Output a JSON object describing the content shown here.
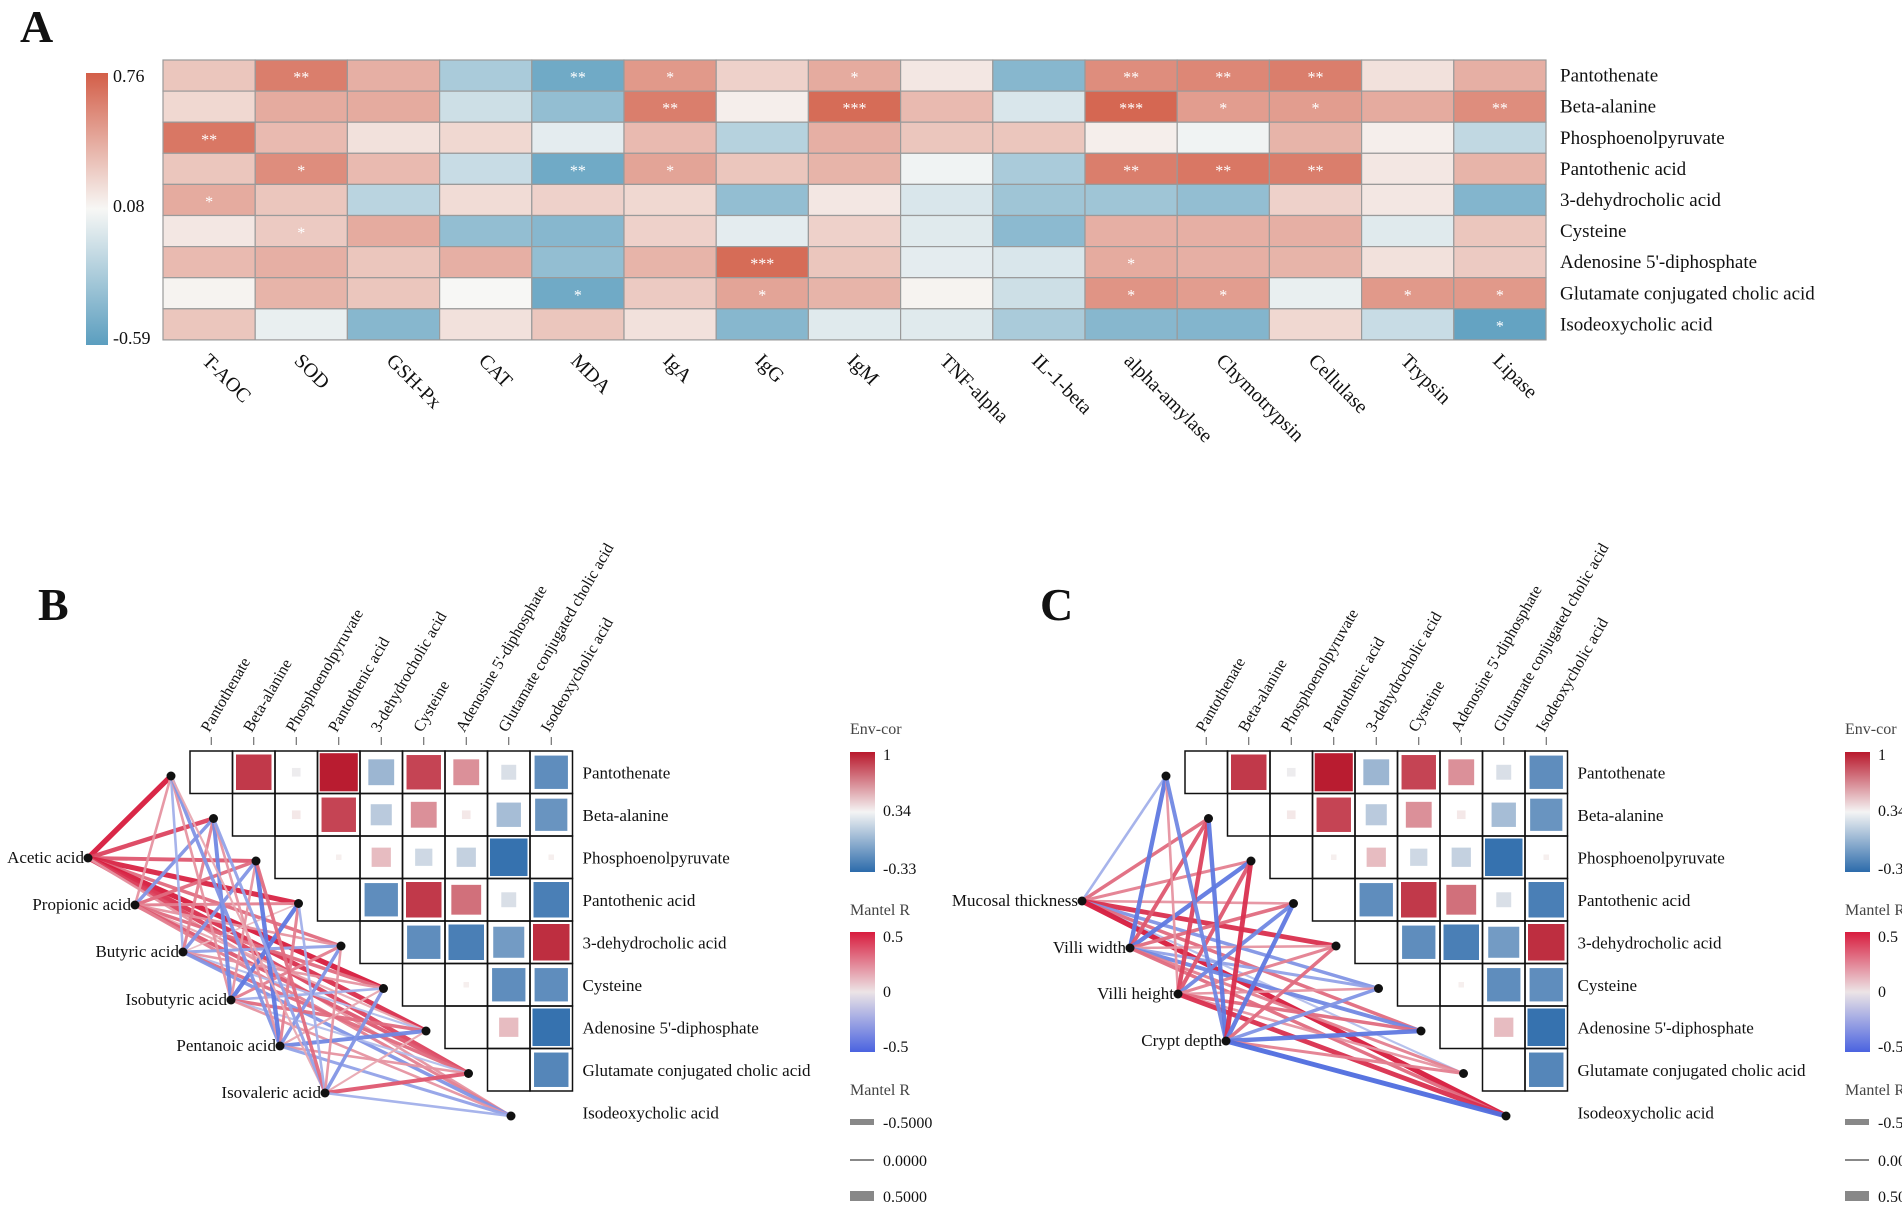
{
  "chart_data": [
    {
      "panel": "A",
      "type": "heatmap",
      "panel_label": "A",
      "rows": [
        "Pantothenate",
        "Beta-alanine",
        "Phosphoenolpyruvate",
        "Pantothenic acid",
        "3-dehydrocholic acid",
        "Cysteine",
        "Adenosine 5'-diphosphate",
        "Glutamate conjugated cholic acid",
        "Isodeoxycholic acid"
      ],
      "columns": [
        "T-AOC",
        "SOD",
        "GSH-Px",
        "CAT",
        "MDA",
        "IgA",
        "IgG",
        "IgM",
        "TNF-alpha",
        "IL-1-beta",
        "alpha-amylase",
        "Chymotrypsin",
        "Cellulase",
        "Trypsin",
        "Lipase"
      ],
      "values": [
        [
          0.3,
          0.62,
          0.4,
          -0.25,
          -0.5,
          0.5,
          0.25,
          0.42,
          0.15,
          -0.4,
          0.55,
          0.58,
          0.62,
          0.18,
          0.4
        ],
        [
          0.22,
          0.42,
          0.42,
          -0.1,
          -0.35,
          0.62,
          0.12,
          0.7,
          0.35,
          -0.05,
          0.72,
          0.48,
          0.48,
          0.42,
          0.55
        ],
        [
          0.65,
          0.35,
          0.18,
          0.22,
          0.0,
          0.35,
          -0.2,
          0.4,
          0.3,
          0.3,
          0.12,
          0.05,
          0.38,
          0.12,
          -0.15
        ],
        [
          0.3,
          0.55,
          0.35,
          -0.12,
          -0.5,
          0.45,
          0.3,
          0.38,
          0.05,
          -0.25,
          0.62,
          0.65,
          0.62,
          0.15,
          0.38
        ],
        [
          0.42,
          0.3,
          -0.18,
          0.2,
          0.25,
          0.22,
          -0.35,
          0.15,
          -0.05,
          -0.3,
          -0.3,
          -0.35,
          0.25,
          0.15,
          -0.42
        ],
        [
          0.15,
          0.28,
          0.42,
          -0.35,
          -0.4,
          0.25,
          0.0,
          0.25,
          -0.02,
          -0.38,
          0.4,
          0.4,
          0.4,
          -0.02,
          0.3
        ],
        [
          0.35,
          0.4,
          0.3,
          0.4,
          -0.35,
          0.38,
          0.7,
          0.3,
          0.0,
          -0.05,
          0.42,
          0.4,
          0.38,
          0.18,
          0.28
        ],
        [
          0.1,
          0.38,
          0.3,
          0.08,
          -0.5,
          0.28,
          0.45,
          0.38,
          0.1,
          -0.1,
          0.52,
          0.48,
          0.02,
          0.5,
          0.5
        ],
        [
          0.3,
          0.02,
          -0.4,
          0.18,
          0.3,
          0.18,
          -0.4,
          -0.02,
          -0.02,
          -0.25,
          -0.4,
          -0.42,
          0.22,
          -0.12,
          -0.55
        ]
      ],
      "significance": [
        [
          "",
          "**",
          "",
          "",
          "**",
          "*",
          "",
          "*",
          "",
          "",
          "**",
          "**",
          "**",
          "",
          ""
        ],
        [
          "",
          "",
          "",
          "",
          "",
          "**",
          "",
          "***",
          "",
          "",
          "***",
          "*",
          "*",
          "",
          "**"
        ],
        [
          "**",
          "",
          "",
          "",
          "",
          "",
          "",
          "",
          "",
          "",
          "",
          "",
          "",
          "",
          ""
        ],
        [
          "",
          "*",
          "",
          "",
          "**",
          "*",
          "",
          "",
          "",
          "",
          "**",
          "**",
          "**",
          "",
          ""
        ],
        [
          "*",
          "",
          "",
          "",
          "",
          "",
          "",
          "",
          "",
          "",
          "",
          "",
          "",
          "",
          ""
        ],
        [
          "",
          "*",
          "",
          "",
          "",
          "",
          "",
          "",
          "",
          "",
          "",
          "",
          "",
          "",
          ""
        ],
        [
          "",
          "",
          "",
          "",
          "",
          "",
          "***",
          "",
          "",
          "",
          "*",
          "",
          "",
          "",
          ""
        ],
        [
          "",
          "",
          "",
          "",
          "*",
          "",
          "*",
          "",
          "",
          "",
          "*",
          "*",
          "",
          "*",
          "*"
        ],
        [
          "",
          "",
          "",
          "",
          "",
          "",
          "",
          "",
          "",
          "",
          "",
          "",
          "",
          "",
          "*"
        ]
      ],
      "colorbar_ticks": [
        "0.76",
        "0.08",
        "-0.59"
      ],
      "colors": {
        "low": "#5b9ebf",
        "mid": "#f7f7f5",
        "high": "#d35e48"
      }
    },
    {
      "panel": "B",
      "type": "mantel-correlation",
      "panel_label": "B",
      "metabolites": [
        "Pantothenate",
        "Beta-alanine",
        "Phosphoenolpyruvate",
        "Pantothenic acid",
        "3-dehydrocholic acid",
        "Cysteine",
        "Adenosine 5'-diphosphate",
        "Glutamate conjugated cholic acid",
        "Isodeoxycholic acid"
      ],
      "env_factors": [
        "Acetic acid",
        "Propionic acid",
        "Butyric acid",
        "Isobutyric acid",
        "Pentanoic acid",
        "Isovaleric acid"
      ],
      "pair_cor": [
        [
          0.85,
          -0.05,
          0.98,
          -0.45,
          0.8,
          0.45,
          -0.15,
          -0.75
        ],
        [
          0.05,
          0.8,
          -0.3,
          0.45,
          0.05,
          -0.4,
          -0.7
        ],
        [
          0.02,
          0.25,
          -0.2,
          -0.25,
          -0.95,
          0.02
        ],
        [
          -0.75,
          0.85,
          0.6,
          -0.15,
          -0.85
        ],
        [
          -0.75,
          -0.85,
          -0.65,
          0.9
        ],
        [
          0.02,
          -0.75,
          -0.75
        ],
        [
          0.25,
          -0.95
        ],
        [
          -0.8
        ]
      ],
      "mantel_r": [
        [
          0.5,
          0.4,
          0.35,
          0.48,
          0.3,
          0.5,
          0.45,
          0.4,
          0.2
        ],
        [
          0.2,
          -0.3,
          0.3,
          0.25,
          0.2,
          0.3,
          0.15,
          0.35,
          0.25
        ],
        [
          -0.2,
          0.25,
          -0.3,
          0.1,
          -0.25,
          0.2,
          -0.15,
          0.3,
          -0.3
        ],
        [
          0.2,
          -0.35,
          0.2,
          -0.4,
          0.25,
          -0.2,
          0.3,
          -0.15,
          0.2
        ],
        [
          -0.3,
          0.2,
          -0.4,
          0.25,
          -0.3,
          0.15,
          -0.35,
          0.2,
          -0.25
        ],
        [
          0.15,
          -0.25,
          0.3,
          -0.2,
          0.2,
          -0.3,
          0.15,
          0.35,
          -0.2
        ]
      ]
    },
    {
      "panel": "C",
      "type": "mantel-correlation",
      "panel_label": "C",
      "metabolites": [
        "Pantothenate",
        "Beta-alanine",
        "Phosphoenolpyruvate",
        "Pantothenic acid",
        "3-dehydrocholic acid",
        "Cysteine",
        "Adenosine 5'-diphosphate",
        "Glutamate conjugated cholic acid",
        "Isodeoxycholic acid"
      ],
      "env_factors": [
        "Mucosal thickness",
        "Villi width",
        "Villi height",
        "Crypt depth"
      ],
      "pair_cor": [
        [
          0.85,
          -0.05,
          0.98,
          -0.45,
          0.8,
          0.45,
          -0.15,
          -0.75
        ],
        [
          0.05,
          0.8,
          -0.3,
          0.45,
          0.05,
          -0.4,
          -0.7
        ],
        [
          0.02,
          0.25,
          -0.2,
          -0.25,
          -0.95,
          0.02
        ],
        [
          -0.75,
          0.85,
          0.6,
          -0.15,
          -0.85
        ],
        [
          -0.75,
          -0.85,
          -0.65,
          0.9
        ],
        [
          0.02,
          -0.75,
          -0.75
        ],
        [
          0.25,
          -0.95
        ],
        [
          -0.8
        ]
      ],
      "mantel_r": [
        [
          -0.2,
          0.3,
          0.25,
          0.2,
          0.45,
          -0.3,
          0.3,
          -0.15,
          0.5
        ],
        [
          -0.4,
          0.35,
          -0.4,
          0.3,
          0.2,
          -0.25,
          -0.35,
          0.25,
          0.3
        ],
        [
          0.2,
          0.4,
          0.35,
          -0.35,
          0.25,
          0.2,
          0.3,
          0.2,
          0.45
        ],
        [
          -0.35,
          -0.4,
          0.45,
          -0.4,
          0.3,
          -0.3,
          -0.4,
          0.25,
          -0.45
        ]
      ]
    }
  ],
  "legend": {
    "env_cor_title": "Env-cor",
    "env_cor_ticks": [
      "1",
      "0.34",
      "-0.33"
    ],
    "mantel_title": "Mantel R",
    "mantel_ticks": [
      "0.5",
      "0",
      "-0.5"
    ],
    "mantel_width_title": "Mantel R",
    "mantel_width_ticks": [
      "-0.5000",
      "0.0000",
      "0.5000"
    ]
  }
}
